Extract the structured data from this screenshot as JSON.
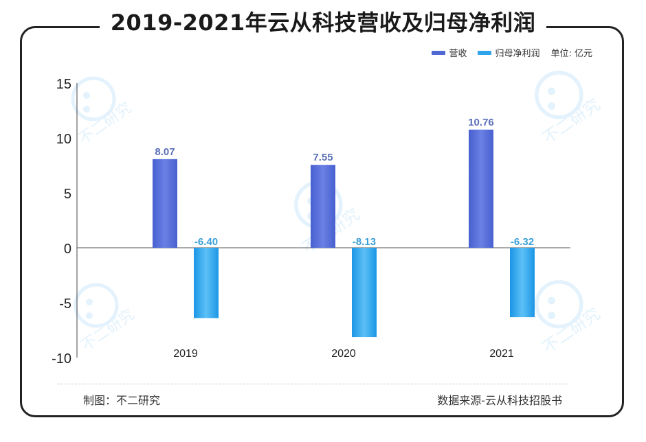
{
  "title": "2019-2021年云从科技营收及归母净利润",
  "legend": {
    "revenue": "营收",
    "net_profit": "归母净利润",
    "unit": "单位: 亿元"
  },
  "footer": {
    "maker": "制图：不二研究",
    "source": "数据来源-云从科技招股书"
  },
  "watermark": "不二研究",
  "colors": {
    "revenue": "#5068d4",
    "net_profit": "#2ea4ee",
    "revenue_label": "#5a6fb8",
    "net_profit_label": "#3aa0d8"
  },
  "chart_data": {
    "type": "bar",
    "title": "2019-2021年云从科技营收及归母净利润",
    "categories": [
      "2019",
      "2020",
      "2021"
    ],
    "series": [
      {
        "name": "营收",
        "values": [
          8.07,
          7.55,
          10.76
        ],
        "labels": [
          "8.07",
          "7.55",
          "10.76"
        ]
      },
      {
        "name": "归母净利润",
        "values": [
          -6.4,
          -8.13,
          -6.32
        ],
        "labels": [
          "-6.40",
          "-8.13",
          "-6.32"
        ]
      }
    ],
    "ylim": [
      -10,
      15
    ],
    "yticks": [
      15,
      10,
      5,
      0,
      -5,
      -10
    ],
    "ytick_labels": [
      "15",
      "10",
      "5",
      "0",
      "-5",
      "-10"
    ],
    "xlabel": "",
    "ylabel": "",
    "unit": "单位: 亿元",
    "grid": false,
    "legend_position": "top-right"
  }
}
